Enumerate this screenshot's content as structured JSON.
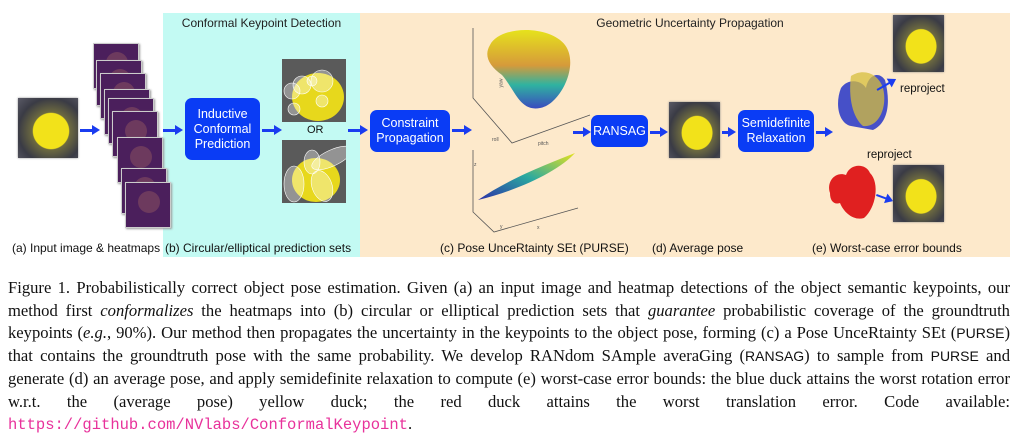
{
  "figure": {
    "panel_titles": {
      "left": "Conformal Keypoint Detection",
      "right": "Geometric Uncertainty Propagation"
    },
    "boxes": {
      "icp": [
        "Inductive",
        "Conformal",
        "Prediction"
      ],
      "cp": [
        "Constraint",
        "Propagation"
      ],
      "ransag": "RANSAG",
      "sdr": [
        "Semidefinite",
        "Relaxation"
      ]
    },
    "or_text": "OR",
    "reproject": "reproject",
    "plot_axes": {
      "top": [
        "yaw",
        "roll",
        "pitch"
      ],
      "bottom": [
        "z",
        "y",
        "x"
      ]
    },
    "labels": {
      "a": "(a) Input image & heatmaps",
      "b": "(b) Circular/elliptical prediction sets",
      "c": "(c) Pose UnceRtainty SEt (PURSE)",
      "d": "(d) Average pose",
      "e": "(e) Worst-case error bounds"
    }
  },
  "caption": {
    "figure_label": "Figure 1.",
    "t1": "Probabilistically correct object pose estimation. Given (a) an input image and heatmap detections of the object semantic keypoints, our method first ",
    "em1": "conformalizes",
    "t2": " the heatmaps into (b) circular or elliptical prediction sets that ",
    "em2": "guarantee",
    "t3": " probabilistic coverage of the groundtruth keypoints (",
    "em3": "e.g.",
    "t4": ", 90%). Our method then propagates the uncertainty in the keypoints to the object pose, forming (c) a Pose UnceRtainty SEt (",
    "purse": "PURSE",
    "t5": ") that contains the groundtruth pose with the same probability. We develop RANdom SAmple averaGing (",
    "ransag": "RANSAG",
    "t6": ") to sample from ",
    "purse2": "PURSE",
    "t7": " and generate (d) an average pose, and apply semidefinite relaxation to compute (e) worst-case error bounds: the blue duck attains the worst rotation error w.r.t. the (average pose) yellow duck; the red duck attains the worst translation error. Code available: ",
    "link": "https://github.com/NVlabs/ConformalKeypoint",
    "t8": "."
  }
}
